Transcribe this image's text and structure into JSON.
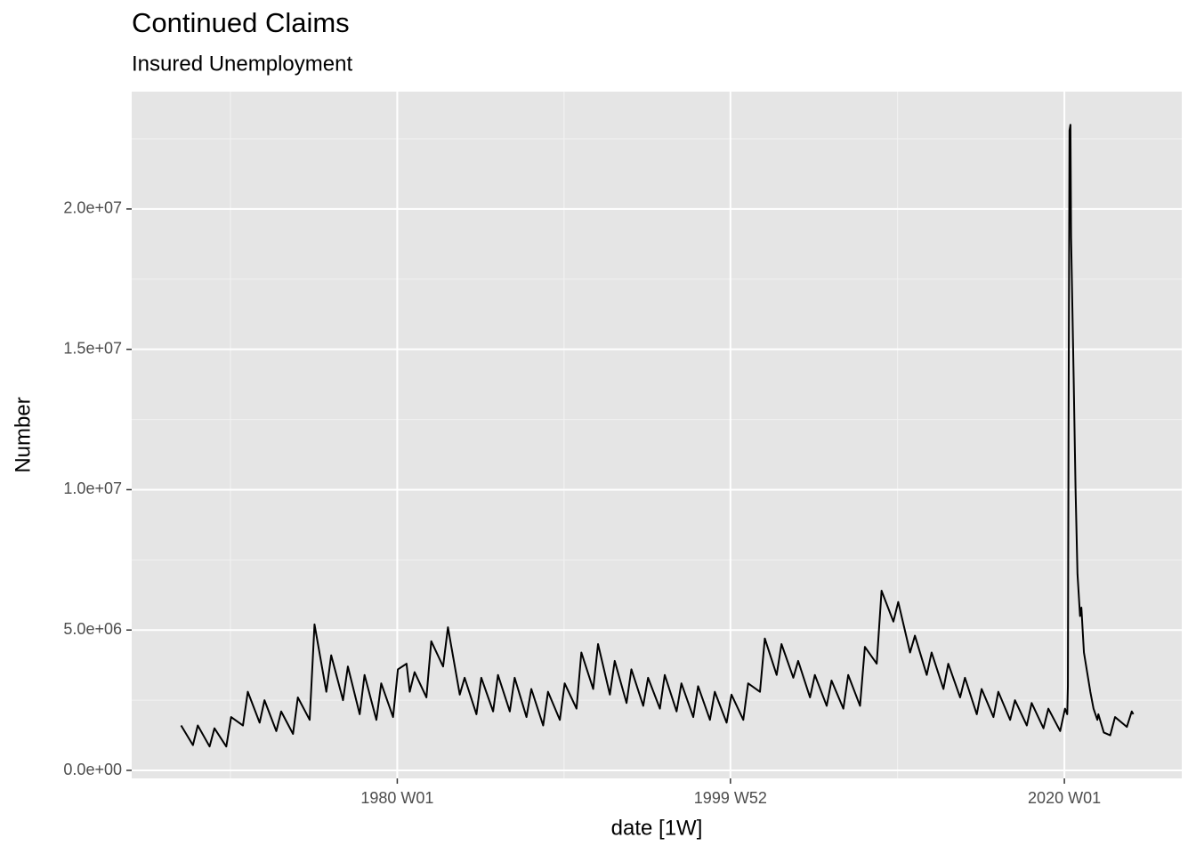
{
  "chart_data": {
    "type": "line",
    "title": "Continued Claims",
    "subtitle": "Insured Unemployment",
    "x_label": "date [1W]",
    "y_label": "Number",
    "xlim": [
      "1964 W05",
      "2027 W03"
    ],
    "xticks": [
      "1980 W01",
      "1999 W52",
      "2020 W01"
    ],
    "xminor": [
      "1970 W01",
      "1990 W01",
      "2010 W01"
    ],
    "ylim": [
      -285000,
      24180000
    ],
    "yticks": [
      {
        "value": 0,
        "label": "0.0e+00"
      },
      {
        "value": 5000000,
        "label": "5.0e+06"
      },
      {
        "value": 10000000,
        "label": "1.0e+07"
      },
      {
        "value": 15000000,
        "label": "1.5e+07"
      },
      {
        "value": 20000000,
        "label": "2.0e+07"
      }
    ],
    "yminor": [
      2500000,
      7500000,
      12500000,
      17500000,
      22500000
    ],
    "grid": true,
    "series": [
      {
        "name": "Continued Claims",
        "color": "#000000",
        "x": [
          "1967 W03",
          "1967 W40",
          "1968 W03",
          "1968 W40",
          "1969 W03",
          "1969 W40",
          "1970 W03",
          "1970 W40",
          "1971 W03",
          "1971 W40",
          "1972 W03",
          "1972 W40",
          "1973 W03",
          "1973 W40",
          "1974 W03",
          "1974 W40",
          "1975 W03",
          "1975 W40",
          "1976 W03",
          "1976 W40",
          "1977 W03",
          "1977 W40",
          "1978 W03",
          "1978 W40",
          "1979 W03",
          "1979 W40",
          "1980 W03",
          "1980 W30",
          "1980 W40",
          "1981 W03",
          "1981 W40",
          "1982 W03",
          "1982 W40",
          "1983 W03",
          "1983 W40",
          "1984 W03",
          "1984 W40",
          "1985 W03",
          "1985 W40",
          "1986 W03",
          "1986 W40",
          "1987 W03",
          "1987 W40",
          "1988 W03",
          "1988 W40",
          "1989 W03",
          "1989 W40",
          "1990 W03",
          "1990 W40",
          "1991 W03",
          "1991 W40",
          "1992 W03",
          "1992 W40",
          "1993 W03",
          "1993 W40",
          "1994 W03",
          "1994 W40",
          "1995 W03",
          "1995 W40",
          "1996 W03",
          "1996 W40",
          "1997 W03",
          "1997 W40",
          "1998 W03",
          "1998 W40",
          "1999 W03",
          "1999 W40",
          "2000 W03",
          "2000 W40",
          "2001 W03",
          "2001 W40",
          "2002 W03",
          "2002 W40",
          "2003 W03",
          "2003 W40",
          "2004 W03",
          "2004 W40",
          "2005 W03",
          "2005 W40",
          "2006 W03",
          "2006 W40",
          "2007 W03",
          "2007 W40",
          "2008 W03",
          "2008 W40",
          "2009 W03",
          "2009 W40",
          "2010 W03",
          "2010 W40",
          "2011 W03",
          "2011 W40",
          "2012 W03",
          "2012 W40",
          "2013 W03",
          "2013 W40",
          "2014 W03",
          "2014 W40",
          "2015 W03",
          "2015 W40",
          "2016 W03",
          "2016 W40",
          "2017 W03",
          "2017 W40",
          "2018 W03",
          "2018 W40",
          "2019 W03",
          "2019 W40",
          "2020 W03",
          "2020 W10",
          "2020 W12",
          "2020 W14",
          "2020 W17",
          "2020 W20",
          "2020 W22",
          "2020 W26",
          "2020 W30",
          "2020 W36",
          "2020 W42",
          "2020 W50",
          "2021 W02",
          "2021 W10",
          "2021 W20",
          "2021 W30",
          "2021 W40",
          "2021 W52",
          "2022 W03",
          "2022 W20",
          "2022 W40",
          "2023 W03",
          "2023 W40",
          "2024 W03",
          "2024 W08"
        ],
        "values": [
          1600000,
          900000,
          1600000,
          850000,
          1500000,
          850000,
          1900000,
          1600000,
          2800000,
          1700000,
          2500000,
          1400000,
          2100000,
          1300000,
          2600000,
          1800000,
          5200000,
          2800000,
          4100000,
          2500000,
          3700000,
          2000000,
          3400000,
          1800000,
          3100000,
          1900000,
          3600000,
          3800000,
          2800000,
          3500000,
          2600000,
          4600000,
          3700000,
          5100000,
          2700000,
          3300000,
          2000000,
          3300000,
          2100000,
          3400000,
          2100000,
          3300000,
          1900000,
          2900000,
          1600000,
          2800000,
          1800000,
          3100000,
          2200000,
          4200000,
          2900000,
          4500000,
          2700000,
          3900000,
          2400000,
          3600000,
          2300000,
          3300000,
          2200000,
          3400000,
          2100000,
          3100000,
          1900000,
          3000000,
          1800000,
          2800000,
          1700000,
          2700000,
          1800000,
          3100000,
          2800000,
          4700000,
          3400000,
          4500000,
          3300000,
          3900000,
          2600000,
          3400000,
          2300000,
          3200000,
          2200000,
          3400000,
          2300000,
          4400000,
          3800000,
          6400000,
          5300000,
          6000000,
          4200000,
          4800000,
          3400000,
          4200000,
          2900000,
          3800000,
          2600000,
          3300000,
          2000000,
          2900000,
          1900000,
          2800000,
          1800000,
          2500000,
          1600000,
          2400000,
          1500000,
          2200000,
          1400000,
          2200000,
          2000000,
          3000000,
          12000000,
          22800000,
          23000000,
          19000000,
          16500000,
          14000000,
          10000000,
          7000000,
          5500000,
          5800000,
          4200000,
          3500000,
          2800000,
          2200000,
          1800000,
          2000000,
          1350000,
          1250000,
          1900000,
          1550000,
          2100000,
          2000000
        ]
      }
    ]
  }
}
